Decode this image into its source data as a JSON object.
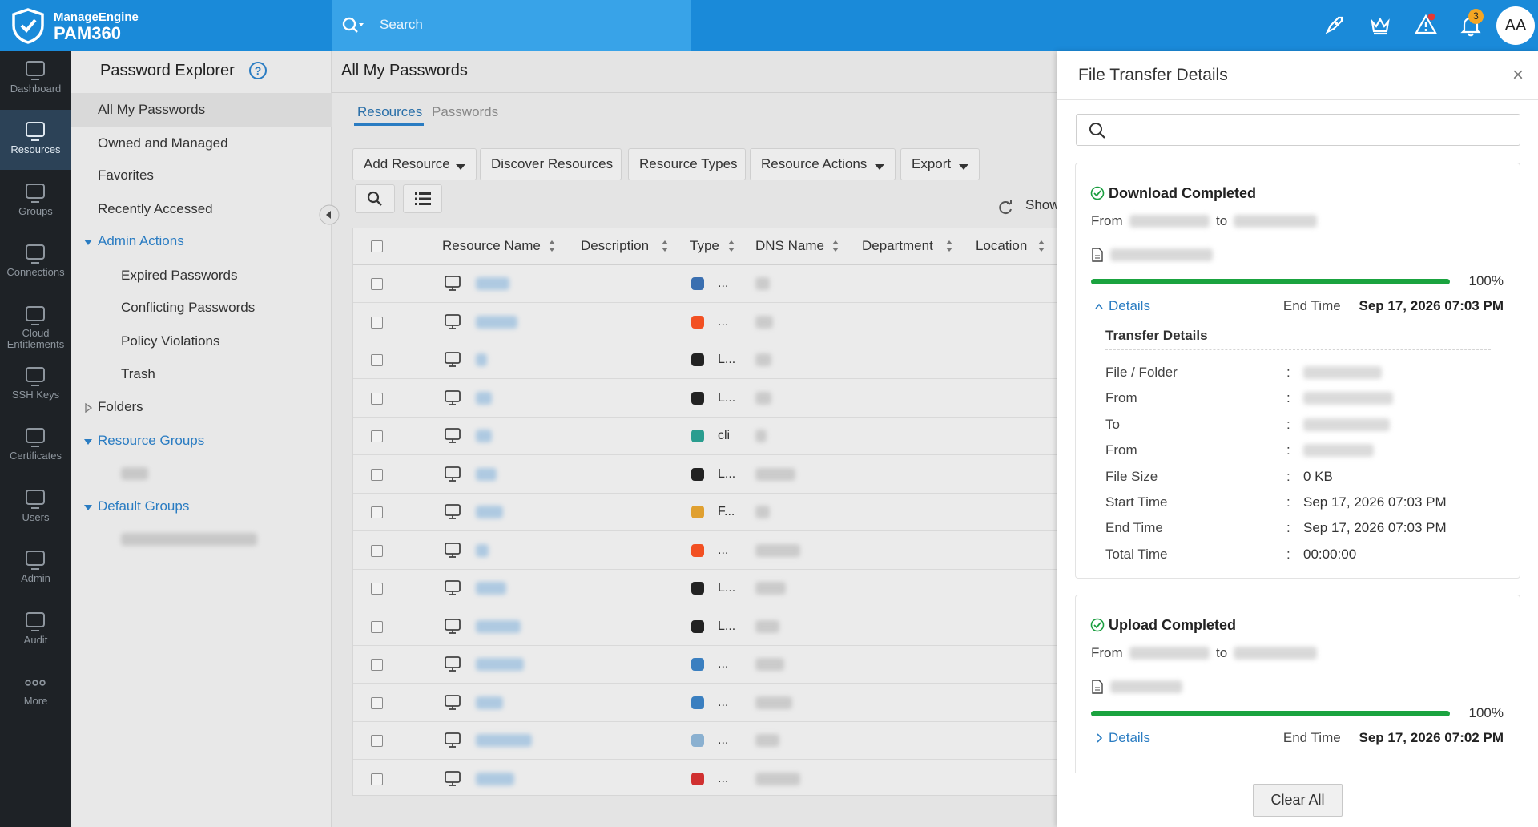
{
  "header": {
    "brand": "ManageEngine",
    "product": "PAM360",
    "search_placeholder": "Search",
    "alert_badge": "3",
    "avatar": "AA"
  },
  "nav": [
    "Dashboard",
    "Resources",
    "Groups",
    "Connections",
    "Cloud Entitlements",
    "SSH Keys",
    "Certificates",
    "Users",
    "Admin",
    "Audit",
    "More"
  ],
  "explorer": {
    "title": "Password Explorer",
    "help": "?",
    "items": [
      "All My Passwords",
      "Owned and Managed",
      "Favorites",
      "Recently Accessed"
    ],
    "admin_actions": "Admin Actions",
    "admin_items": [
      "Expired Passwords",
      "Conflicting Passwords",
      "Policy Violations",
      "Trash"
    ],
    "folders": "Folders",
    "resource_groups": "Resource Groups",
    "default_groups": "Default Groups"
  },
  "main": {
    "title": "All My Passwords",
    "tabs": [
      "Resources",
      "Passwords"
    ],
    "toolbar": [
      "Add Resource",
      "Discover Resources",
      "Resource Types",
      "Resource Actions",
      "Export"
    ],
    "show": "Show",
    "columns": [
      "Resource Name",
      "Description",
      "Type",
      "DNS Name",
      "Department",
      "Location"
    ],
    "row_types": [
      "...",
      "...",
      "L...",
      "L...",
      "cli",
      "L...",
      "F...",
      "...",
      "L...",
      "L...",
      "...",
      "...",
      "...",
      "..."
    ]
  },
  "panel": {
    "title": "File Transfer Details",
    "close": "×",
    "transfers": [
      {
        "status": "Download Completed",
        "from": "From",
        "to": "to",
        "progress": 100,
        "progress_label": "100%",
        "details": "Details",
        "end_time_label": "End Time",
        "end_time": "Sep 17, 2026 07:03 PM",
        "detail_title": "Transfer Details",
        "separator": ":",
        "fields": [
          {
            "label": "File / Folder"
          },
          {
            "label": "From"
          },
          {
            "label": "To"
          },
          {
            "label": "From"
          },
          {
            "label": "File Size",
            "value": "0 KB"
          },
          {
            "label": "Start Time",
            "value": "Sep 17, 2026 07:03 PM"
          },
          {
            "label": "End Time",
            "value": "Sep 17, 2026 07:03 PM"
          },
          {
            "label": "Total Time",
            "value": "00:00:00"
          }
        ]
      },
      {
        "status": "Upload Completed",
        "from": "From",
        "to": "to",
        "progress": 100,
        "progress_label": "100%",
        "details": "Details",
        "end_time_label": "End Time",
        "end_time": "Sep 17, 2026 07:02 PM"
      }
    ],
    "clear_all": "Clear All"
  }
}
